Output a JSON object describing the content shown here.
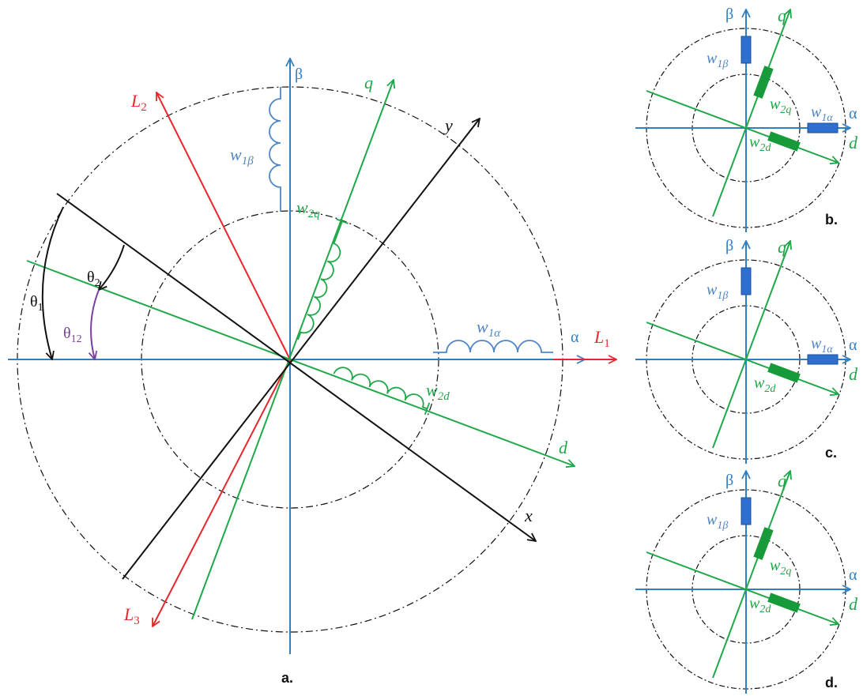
{
  "colors": {
    "blue": "#2f7fc3",
    "green": "#1fa84a",
    "red": "#e8262d",
    "black": "#111111",
    "purple": "#7b3fa0",
    "coil_blue": "#4f86c6",
    "fill_blue": "#2e6fd0",
    "fill_green": "#179a3a"
  },
  "main": {
    "axes": {
      "alpha": "α",
      "beta": "β",
      "q": "q",
      "d": "d",
      "x": "x",
      "y": "y",
      "L1": "L",
      "L1_sub": "1",
      "L2": "L",
      "L2_sub": "2",
      "L3": "L",
      "L3_sub": "3"
    },
    "windings": {
      "w1a": "w",
      "w1a_sub": "1α",
      "w1b": "w",
      "w1b_sub": "1β",
      "w2q": "w",
      "w2q_sub": "2q",
      "w2d": "w",
      "w2d_sub": "2d"
    },
    "angles": {
      "theta1": "θ",
      "theta1_sub": "1",
      "theta2": "θ",
      "theta2_sub": "2",
      "theta12": "θ",
      "theta12_sub": "12"
    },
    "caption": "a."
  },
  "panel_b": {
    "alpha": "α",
    "beta": "β",
    "q": "q",
    "d": "d",
    "w1a": "w",
    "w1a_sub": "1α",
    "w1b": "w",
    "w1b_sub": "1β",
    "w2q": "w",
    "w2q_sub": "2q",
    "w2d": "w",
    "w2d_sub": "2d",
    "caption": "b."
  },
  "panel_c": {
    "alpha": "α",
    "beta": "β",
    "q": "q",
    "d": "d",
    "w1a": "w",
    "w1a_sub": "1α",
    "w1b": "w",
    "w1b_sub": "1β",
    "w2d": "w",
    "w2d_sub": "2d",
    "caption": "c."
  },
  "panel_d": {
    "alpha": "α",
    "beta": "β",
    "q": "q",
    "d": "d",
    "w1b": "w",
    "w1b_sub": "1β",
    "w2q": "w",
    "w2q_sub": "2q",
    "w2d": "w",
    "w2d_sub": "2d",
    "caption": "d."
  }
}
